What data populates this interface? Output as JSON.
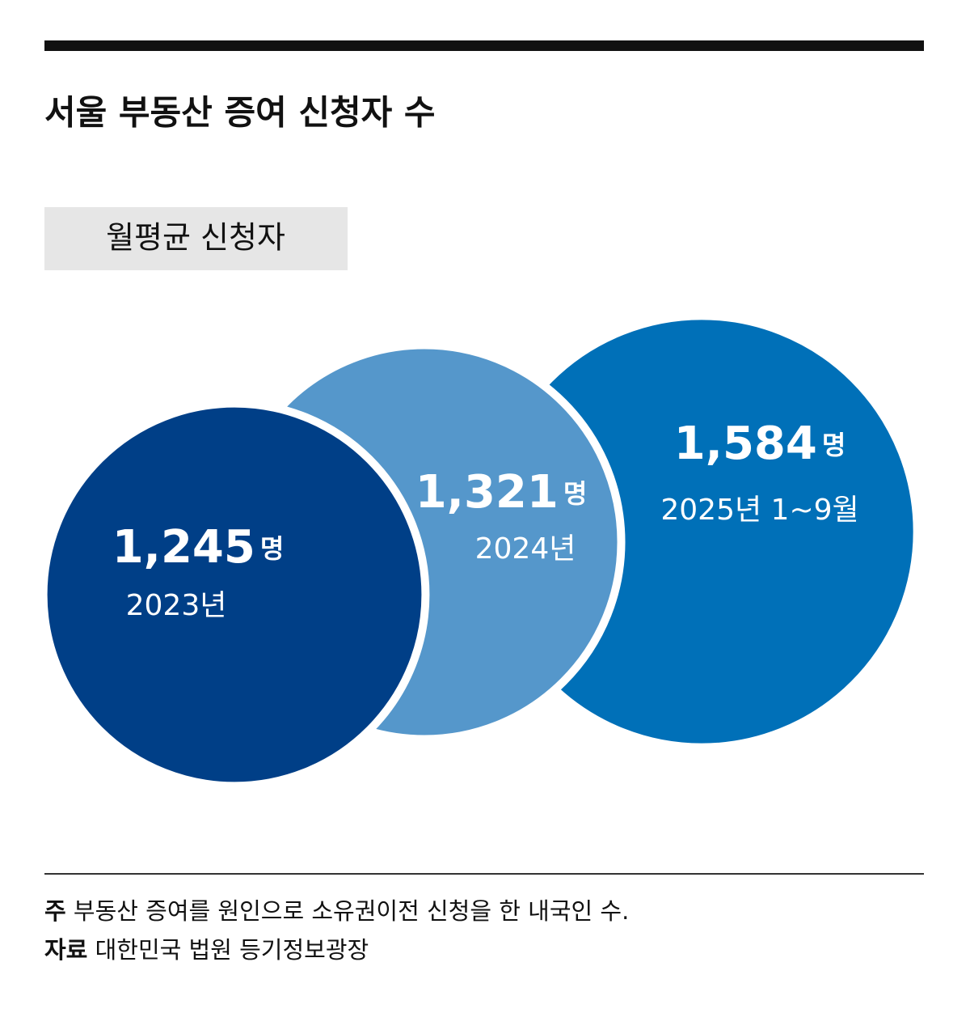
{
  "chart_data": {
    "type": "bubble",
    "title": "서울 부동산 증여 신청자 수",
    "subtitle": "월평균 신청자",
    "categories": [
      "2023년",
      "2024년",
      "2025년 1~9월"
    ],
    "values": [
      1245,
      1321,
      1584
    ],
    "value_labels": [
      "1,245",
      "1,321",
      "1,584"
    ],
    "unit": "명",
    "colors": [
      "#003f87",
      "#5597cb",
      "#0070b8"
    ]
  },
  "footer": {
    "notes": [
      {
        "label": "주",
        "text": "부동산 증여를 원인으로 소유권이전 신청을 한 내국인 수."
      },
      {
        "label": "자료",
        "text": "대한민국 법원 등기정보광장"
      }
    ]
  }
}
